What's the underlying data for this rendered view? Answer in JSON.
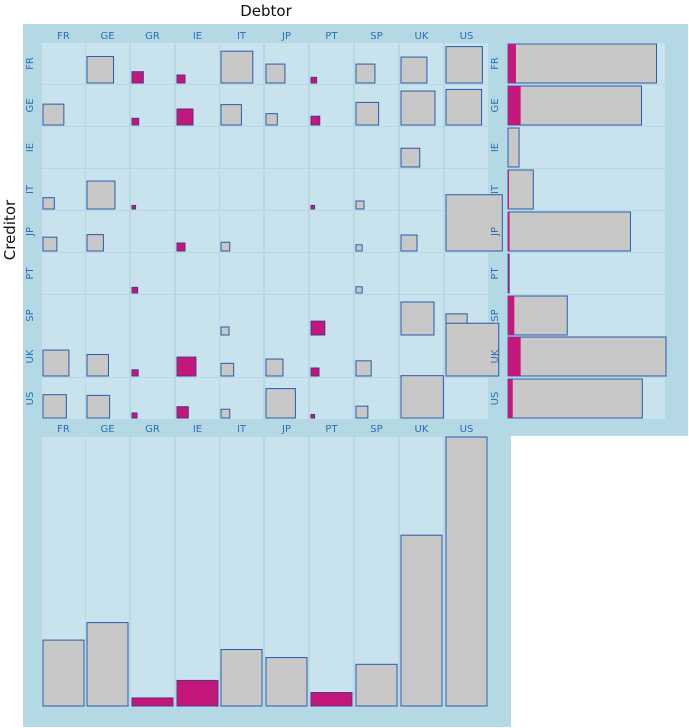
{
  "chart_data": {
    "type": "heatmap",
    "title": "",
    "xlabel": "Debtor",
    "ylabel": "Creditor",
    "countries": [
      "FR",
      "GE",
      "GR",
      "IE",
      "IT",
      "JP",
      "PT",
      "SP",
      "UK",
      "US"
    ],
    "debtor_labels": [
      "FR",
      "GE",
      "GR",
      "IE",
      "IT",
      "JP",
      "PT",
      "SP",
      "UK",
      "US"
    ],
    "creditor_labels": [
      "FR",
      "GE",
      "IE",
      "IT",
      "JP",
      "PT",
      "SP",
      "UK",
      "US"
    ],
    "creditors": [
      "FR",
      "GE",
      "IE",
      "IT",
      "JP",
      "PT",
      "SP",
      "UK",
      "US"
    ],
    "matrix_scale_max": 250,
    "matrix": [
      {
        "creditor": "FR",
        "cells": [
          {
            "debtor": "GE",
            "value": 110,
            "risky": false
          },
          {
            "debtor": "GR",
            "value": 20,
            "risky": true
          },
          {
            "debtor": "IE",
            "value": 10,
            "risky": true
          },
          {
            "debtor": "IT",
            "value": 158,
            "risky": false
          },
          {
            "debtor": "JP",
            "value": 56,
            "risky": false
          },
          {
            "debtor": "PT",
            "value": 5,
            "risky": true
          },
          {
            "debtor": "SP",
            "value": 56,
            "risky": false
          },
          {
            "debtor": "UK",
            "value": 105,
            "risky": false
          },
          {
            "debtor": "US",
            "value": 207,
            "risky": false
          }
        ]
      },
      {
        "creditor": "GE",
        "cells": [
          {
            "debtor": "FR",
            "value": 68,
            "risky": false
          },
          {
            "debtor": "GR",
            "value": 7,
            "risky": true
          },
          {
            "debtor": "IE",
            "value": 40,
            "risky": true
          },
          {
            "debtor": "IT",
            "value": 65,
            "risky": false
          },
          {
            "debtor": "JP",
            "value": 20,
            "risky": false
          },
          {
            "debtor": "PT",
            "value": 12,
            "risky": true
          },
          {
            "debtor": "SP",
            "value": 80,
            "risky": false
          },
          {
            "debtor": "UK",
            "value": 180,
            "risky": false
          },
          {
            "debtor": "US",
            "value": 198,
            "risky": false
          }
        ]
      },
      {
        "creditor": "IE",
        "cells": [
          {
            "debtor": "UK",
            "value": 55,
            "risky": false
          }
        ]
      },
      {
        "creditor": "IT",
        "cells": [
          {
            "debtor": "FR",
            "value": 20,
            "risky": false
          },
          {
            "debtor": "GE",
            "value": 122,
            "risky": false
          },
          {
            "debtor": "GR",
            "value": 2,
            "risky": true
          },
          {
            "debtor": "PT",
            "value": 2,
            "risky": true
          },
          {
            "debtor": "SP",
            "value": 10,
            "risky": false
          }
        ]
      },
      {
        "creditor": "JP",
        "cells": [
          {
            "debtor": "FR",
            "value": 30,
            "risky": false
          },
          {
            "debtor": "GE",
            "value": 42,
            "risky": false
          },
          {
            "debtor": "IE",
            "value": 10,
            "risky": true
          },
          {
            "debtor": "IT",
            "value": 12,
            "risky": false
          },
          {
            "debtor": "SP",
            "value": 6,
            "risky": false
          },
          {
            "debtor": "UK",
            "value": 40,
            "risky": false
          },
          {
            "debtor": "US",
            "value": 495,
            "risky": false
          }
        ]
      },
      {
        "creditor": "PT",
        "cells": [
          {
            "debtor": "GR",
            "value": 5,
            "risky": true
          },
          {
            "debtor": "SP",
            "value": 6,
            "risky": false
          }
        ]
      },
      {
        "creditor": "SP",
        "cells": [
          {
            "debtor": "IT",
            "value": 10,
            "risky": false
          },
          {
            "debtor": "PT",
            "value": 30,
            "risky": true
          },
          {
            "debtor": "UK",
            "value": 170,
            "risky": false
          },
          {
            "debtor": "US",
            "value": 70,
            "risky": false
          }
        ]
      },
      {
        "creditor": "UK",
        "cells": [
          {
            "debtor": "FR",
            "value": 105,
            "risky": false
          },
          {
            "debtor": "GE",
            "value": 72,
            "risky": false
          },
          {
            "debtor": "GR",
            "value": 6,
            "risky": true
          },
          {
            "debtor": "IE",
            "value": 56,
            "risky": true
          },
          {
            "debtor": "IT",
            "value": 25,
            "risky": false
          },
          {
            "debtor": "JP",
            "value": 45,
            "risky": false
          },
          {
            "debtor": "PT",
            "value": 10,
            "risky": true
          },
          {
            "debtor": "SP",
            "value": 36,
            "risky": false
          },
          {
            "debtor": "US",
            "value": 435,
            "risky": false
          }
        ]
      },
      {
        "creditor": "US",
        "cells": [
          {
            "debtor": "FR",
            "value": 85,
            "risky": false
          },
          {
            "debtor": "GE",
            "value": 80,
            "risky": false
          },
          {
            "debtor": "GR",
            "value": 4,
            "risky": true
          },
          {
            "debtor": "IE",
            "value": 20,
            "risky": true
          },
          {
            "debtor": "IT",
            "value": 12,
            "risky": false
          },
          {
            "debtor": "JP",
            "value": 135,
            "risky": false
          },
          {
            "debtor": "PT",
            "value": 2,
            "risky": true
          },
          {
            "debtor": "SP",
            "value": 22,
            "risky": false
          },
          {
            "debtor": "UK",
            "value": 280,
            "risky": false
          }
        ]
      }
    ],
    "creditor_totals": {
      "xlim": [
        0,
        1000
      ],
      "rows": [
        {
          "creditor": "FR",
          "total": 940,
          "risky": 50
        },
        {
          "creditor": "GE",
          "total": 845,
          "risky": 80
        },
        {
          "creditor": "IE",
          "total": 70,
          "risky": 0
        },
        {
          "creditor": "IT",
          "total": 160,
          "risky": 5
        },
        {
          "creditor": "JP",
          "total": 775,
          "risky": 10
        },
        {
          "creditor": "PT",
          "total": 8,
          "risky": 6
        },
        {
          "creditor": "SP",
          "total": 375,
          "risky": 40
        },
        {
          "creditor": "UK",
          "total": 1000,
          "risky": 80
        },
        {
          "creditor": "US",
          "total": 850,
          "risky": 30
        }
      ]
    },
    "debtor_totals": {
      "ylim": [
        0,
        1000
      ],
      "columns": [
        {
          "debtor": "FR",
          "value": 245,
          "risky": false
        },
        {
          "debtor": "GE",
          "value": 310,
          "risky": false
        },
        {
          "debtor": "GR",
          "value": 30,
          "risky": true
        },
        {
          "debtor": "IE",
          "value": 95,
          "risky": true
        },
        {
          "debtor": "IT",
          "value": 210,
          "risky": false
        },
        {
          "debtor": "JP",
          "value": 180,
          "risky": false
        },
        {
          "debtor": "PT",
          "value": 50,
          "risky": true
        },
        {
          "debtor": "SP",
          "value": 155,
          "risky": false
        },
        {
          "debtor": "UK",
          "value": 635,
          "risky": false
        },
        {
          "debtor": "US",
          "value": 1000,
          "risky": false
        }
      ]
    },
    "colors": {
      "panel": "#b5d8e5",
      "cell": "#c9e3ee",
      "safe_fill": "#c8c8c8",
      "safe_stroke": "#2c5aa8",
      "risky_fill": "#c4177b",
      "risky_stroke": "#5a2e8a",
      "tick_text": "#2a6fb5"
    }
  }
}
